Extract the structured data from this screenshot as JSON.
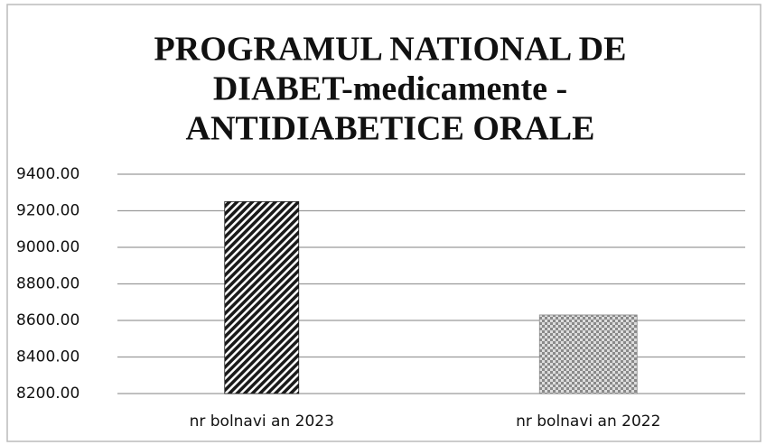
{
  "chart_data": {
    "type": "bar",
    "title": [
      "PROGRAMUL NATIONAL DE",
      "DIABET-medicamente -",
      "ANTIDIABETICE ORALE"
    ],
    "categories": [
      "nr bolnavi an 2023",
      "nr bolnavi an 2022"
    ],
    "values": [
      9250,
      8630
    ],
    "colors": [
      "#1a1a1a",
      "#8a8a8a"
    ],
    "ylim": [
      8200,
      9400
    ],
    "yticks": [
      {
        "value": 8200,
        "label": "8200.00"
      },
      {
        "value": 8400,
        "label": "8400.00"
      },
      {
        "value": 8600,
        "label": "8600.00"
      },
      {
        "value": 8800,
        "label": "8800.00"
      },
      {
        "value": 9000,
        "label": "9000.00"
      },
      {
        "value": 9200,
        "label": "9200.00"
      },
      {
        "value": 9400,
        "label": "9400.00"
      }
    ],
    "grid": true
  }
}
